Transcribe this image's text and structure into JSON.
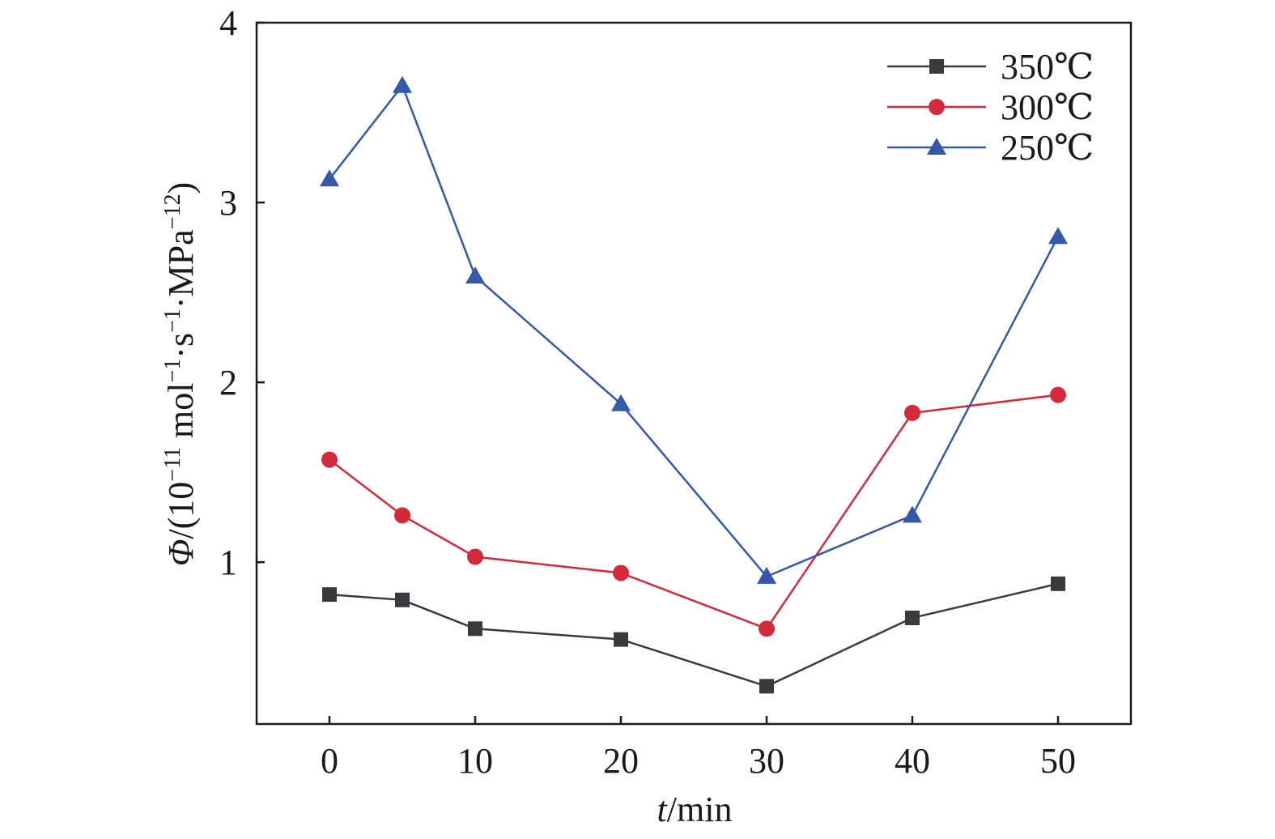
{
  "chart_data": {
    "type": "line",
    "x_axis": {
      "label_italic": "t",
      "label_rest": "/min",
      "range": [
        -5,
        55
      ],
      "ticks": [
        0,
        10,
        20,
        30,
        40,
        50
      ],
      "tick_labels": [
        "0",
        "10",
        "20",
        "30",
        "40",
        "50"
      ]
    },
    "y_axis": {
      "label_parts": {
        "symbol": "Φ",
        "open": "/(10",
        "exp1": "−11",
        "unit1": " mol",
        "exp2": "−1",
        "unit2": "·s",
        "exp3": "−1",
        "unit3": "·MPa",
        "exp4": "−12",
        "close": ")"
      },
      "range": [
        0.1,
        4
      ],
      "ticks": [
        1,
        2,
        3,
        4
      ],
      "tick_labels": [
        "1",
        "2",
        "3",
        "4"
      ]
    },
    "grid": false,
    "legend_position": "top-right",
    "series": [
      {
        "name": "350℃",
        "color": "#3a3a3e",
        "marker": "square",
        "points": [
          [
            0,
            0.82
          ],
          [
            5,
            0.79
          ],
          [
            10,
            0.63
          ],
          [
            20,
            0.57
          ],
          [
            30,
            0.31
          ],
          [
            40,
            0.69
          ],
          [
            50,
            0.88
          ]
        ]
      },
      {
        "name": "300℃",
        "color": "#d42a3c",
        "marker": "circle",
        "points": [
          [
            0,
            1.57
          ],
          [
            5,
            1.26
          ],
          [
            10,
            1.03
          ],
          [
            20,
            0.94
          ],
          [
            30,
            0.63
          ],
          [
            40,
            1.83
          ],
          [
            50,
            1.93
          ]
        ]
      },
      {
        "name": "250℃",
        "color": "#3558a8",
        "marker": "triangle",
        "points": [
          [
            0,
            3.13
          ],
          [
            5,
            3.65
          ],
          [
            10,
            2.59
          ],
          [
            20,
            1.88
          ],
          [
            30,
            0.92
          ],
          [
            40,
            1.26
          ],
          [
            50,
            2.81
          ]
        ]
      }
    ]
  }
}
